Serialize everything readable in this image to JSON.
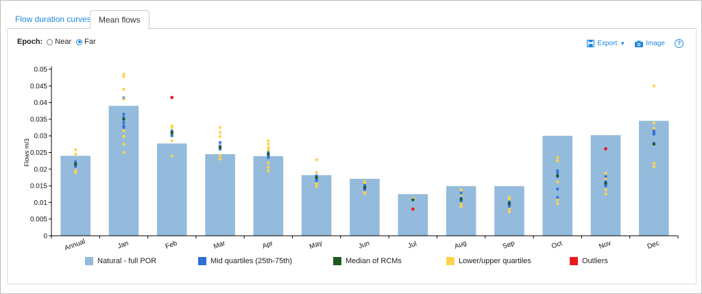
{
  "tabs": [
    {
      "label": "Flow duration curves",
      "active": false
    },
    {
      "label": "Mean flows",
      "active": true
    }
  ],
  "epoch": {
    "label": "Epoch:",
    "options": [
      "Near",
      "Far"
    ],
    "selected": "Far"
  },
  "toolbar": {
    "export_label": "Export",
    "image_label": "Image",
    "help_label": "?"
  },
  "colors": {
    "bar": "#94bbdc",
    "mid": "#2e6fd6",
    "median": "#1e5a1e",
    "quartile": "#ffd34d",
    "outlier": "#ee1a1a",
    "accent": "#1e88e5"
  },
  "legend": [
    {
      "label": "Natural - full POR",
      "color": "#94bbdc"
    },
    {
      "label": "Mid quartiles (25th-75th)",
      "color": "#2e6fd6"
    },
    {
      "label": "Median of RCMs",
      "color": "#1e5a1e"
    },
    {
      "label": "Lower/upper quartiles",
      "color": "#ffd34d"
    },
    {
      "label": "Outliers",
      "color": "#ee1a1a"
    }
  ],
  "chart_data": {
    "type": "bar",
    "ylabel": "Flows m/3",
    "xlabel": "",
    "ylim": [
      0,
      0.05
    ],
    "yticks": [
      "0",
      "0.005",
      "0.01",
      "0.015",
      "0.02",
      "0.025",
      "0.03",
      "0.035",
      "0.04",
      "0.045",
      "0.05"
    ],
    "categories": [
      "Annual",
      "Jan",
      "Feb",
      "Mar",
      "Apr",
      "May",
      "Jun",
      "Jul",
      "Aug",
      "Sep",
      "Oct",
      "Nov",
      "Dec"
    ],
    "series": [
      {
        "name": "Natural - full POR",
        "values": [
          0.024,
          0.039,
          0.0277,
          0.0245,
          0.0239,
          0.0182,
          0.0171,
          0.0125,
          0.0149,
          0.0149,
          0.03,
          0.0302,
          0.0345
        ]
      }
    ],
    "points": {
      "quartiles": [
        [
          0.0258,
          0.0245,
          0.0196,
          0.019
        ],
        [
          0.0485,
          0.0478,
          0.044,
          0.041,
          0.0315,
          0.0298,
          0.0275,
          0.025
        ],
        [
          0.033,
          0.0325,
          0.0285,
          0.024
        ],
        [
          0.0325,
          0.031,
          0.0298,
          0.024,
          0.023
        ],
        [
          0.0285,
          0.0275,
          0.0265,
          0.0258,
          0.0218,
          0.0205,
          0.0195
        ],
        [
          0.0228,
          0.019,
          0.0157,
          0.0148
        ],
        [
          0.0162,
          0.0158,
          0.0132,
          0.0127
        ],
        [
          0.0112,
          0.0108
        ],
        [
          0.0138,
          0.0124,
          0.0096,
          0.0088
        ],
        [
          0.0115,
          0.0108,
          0.0082,
          0.0072
        ],
        [
          0.0235,
          0.0225,
          0.0162,
          0.0108,
          0.0096
        ],
        [
          0.0187,
          0.0172,
          0.0138,
          0.0125
        ],
        [
          0.045,
          0.0338,
          0.0322,
          0.0218,
          0.0208
        ]
      ],
      "mid": [
        [
          0.0222,
          0.0216,
          0.0212,
          0.0208
        ],
        [
          0.0415,
          0.0365,
          0.0355,
          0.034,
          0.033,
          0.0325
        ],
        [
          0.0315,
          0.031,
          0.0305,
          0.03
        ],
        [
          0.028,
          0.027,
          0.0265,
          0.026
        ],
        [
          0.025,
          0.0245,
          0.024,
          0.0235
        ],
        [
          0.018,
          0.0175,
          0.017,
          0.0165
        ],
        [
          0.0152,
          0.0147,
          0.0142,
          0.0138
        ],
        [],
        [
          0.0128,
          0.0112,
          0.0108,
          0.0104
        ],
        [
          0.0102,
          0.0098,
          0.0093,
          0.0088
        ],
        [
          0.0195,
          0.0188,
          0.0178,
          0.014,
          0.0115
        ],
        [
          0.0178,
          0.0162,
          0.0155,
          0.015
        ],
        [
          0.0315,
          0.031,
          0.0305,
          0.0278
        ]
      ],
      "median": [
        0.0215,
        0.035,
        0.031,
        0.0265,
        0.0245,
        0.0175,
        0.0145,
        0.0108,
        0.011,
        0.0097,
        0.018,
        0.0158,
        0.0275
      ],
      "outliers": [
        null,
        null,
        0.0415,
        null,
        null,
        null,
        null,
        0.008,
        null,
        null,
        null,
        0.0261,
        null
      ]
    }
  }
}
